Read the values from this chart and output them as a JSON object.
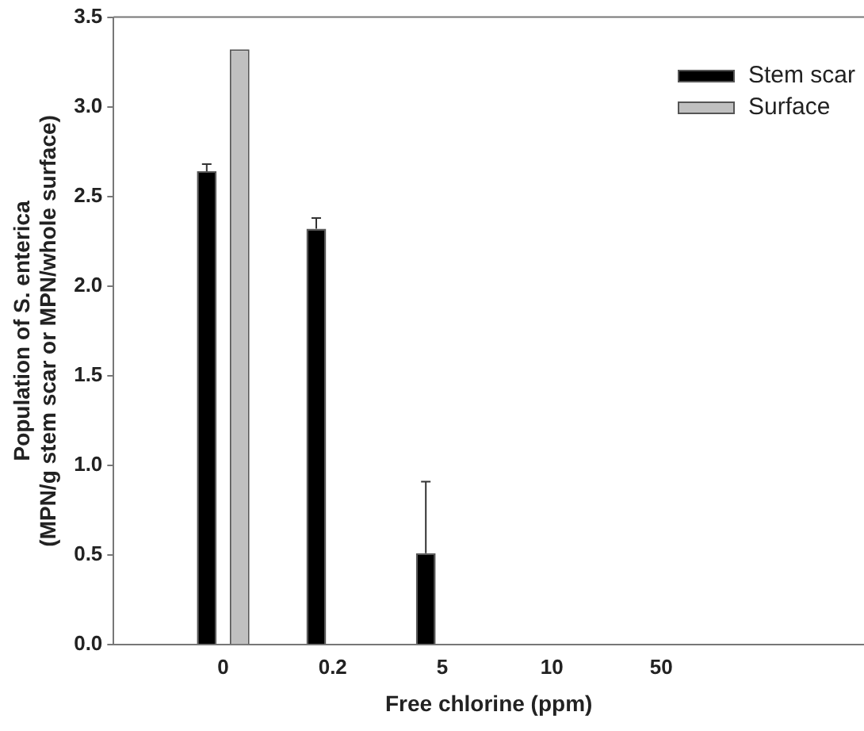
{
  "chart_data": {
    "type": "bar",
    "xlabel": "Free chlorine (ppm)",
    "ylabel": "Population of S. enterica\n(MPN/g stem scar or MPN/whole surface)",
    "categories": [
      "0",
      "0.2",
      "5",
      "10",
      "50"
    ],
    "series": [
      {
        "name": "Stem scar",
        "color": "#000000",
        "values": [
          2.64,
          2.32,
          0.51,
          0,
          0
        ],
        "errors": [
          [
            2.64,
            2.68
          ],
          [
            2.32,
            2.38
          ],
          [
            0.51,
            0.91
          ],
          null,
          null
        ]
      },
      {
        "name": "Surface",
        "color": "#c0c0c0",
        "values": [
          3.32,
          0,
          0,
          0,
          0
        ]
      }
    ],
    "ylim": [
      0,
      3.5
    ],
    "yticks": [
      {
        "value": 0,
        "label": "0.0"
      },
      0.5,
      {
        "value": 1,
        "label": "1.0"
      },
      1.5,
      {
        "value": 2,
        "label": "2.0"
      },
      2.5,
      {
        "value": 3,
        "label": "3.0"
      },
      3.5
    ],
    "grid": false,
    "legend": "top right"
  }
}
